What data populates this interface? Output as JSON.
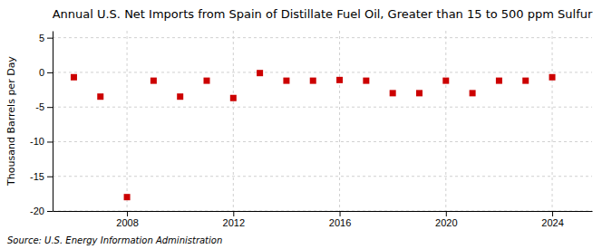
{
  "chart_data": {
    "type": "scatter",
    "title": "Annual U.S. Net Imports from Spain of Distillate Fuel Oil, Greater than 15 to 500 ppm Sulfur",
    "y_label": "Thousand Barrels per Day",
    "annotations": [
      "Source: U.S. Energy Information Administration"
    ],
    "x": [
      2006,
      2007,
      2008,
      2009,
      2010,
      2011,
      2012,
      2013,
      2014,
      2015,
      2016,
      2017,
      2018,
      2019,
      2020,
      2021,
      2022,
      2023,
      2024
    ],
    "values": [
      -0.7,
      -3.5,
      -18.0,
      -1.2,
      -3.5,
      -1.2,
      -3.7,
      -0.1,
      -1.2,
      -1.2,
      -1.1,
      -1.2,
      -3.0,
      -3.0,
      -1.2,
      -3.0,
      -1.2,
      -1.2,
      -0.7
    ],
    "color": "#cc0000",
    "marker": "square",
    "xlim": [
      2005.2,
      2025.5
    ],
    "xticks": [
      2008,
      2012,
      2016,
      2020,
      2024
    ],
    "ylim": [
      -20,
      6
    ],
    "yticks": [
      5,
      0,
      -5,
      -10,
      -15,
      -20
    ],
    "grid": true
  }
}
